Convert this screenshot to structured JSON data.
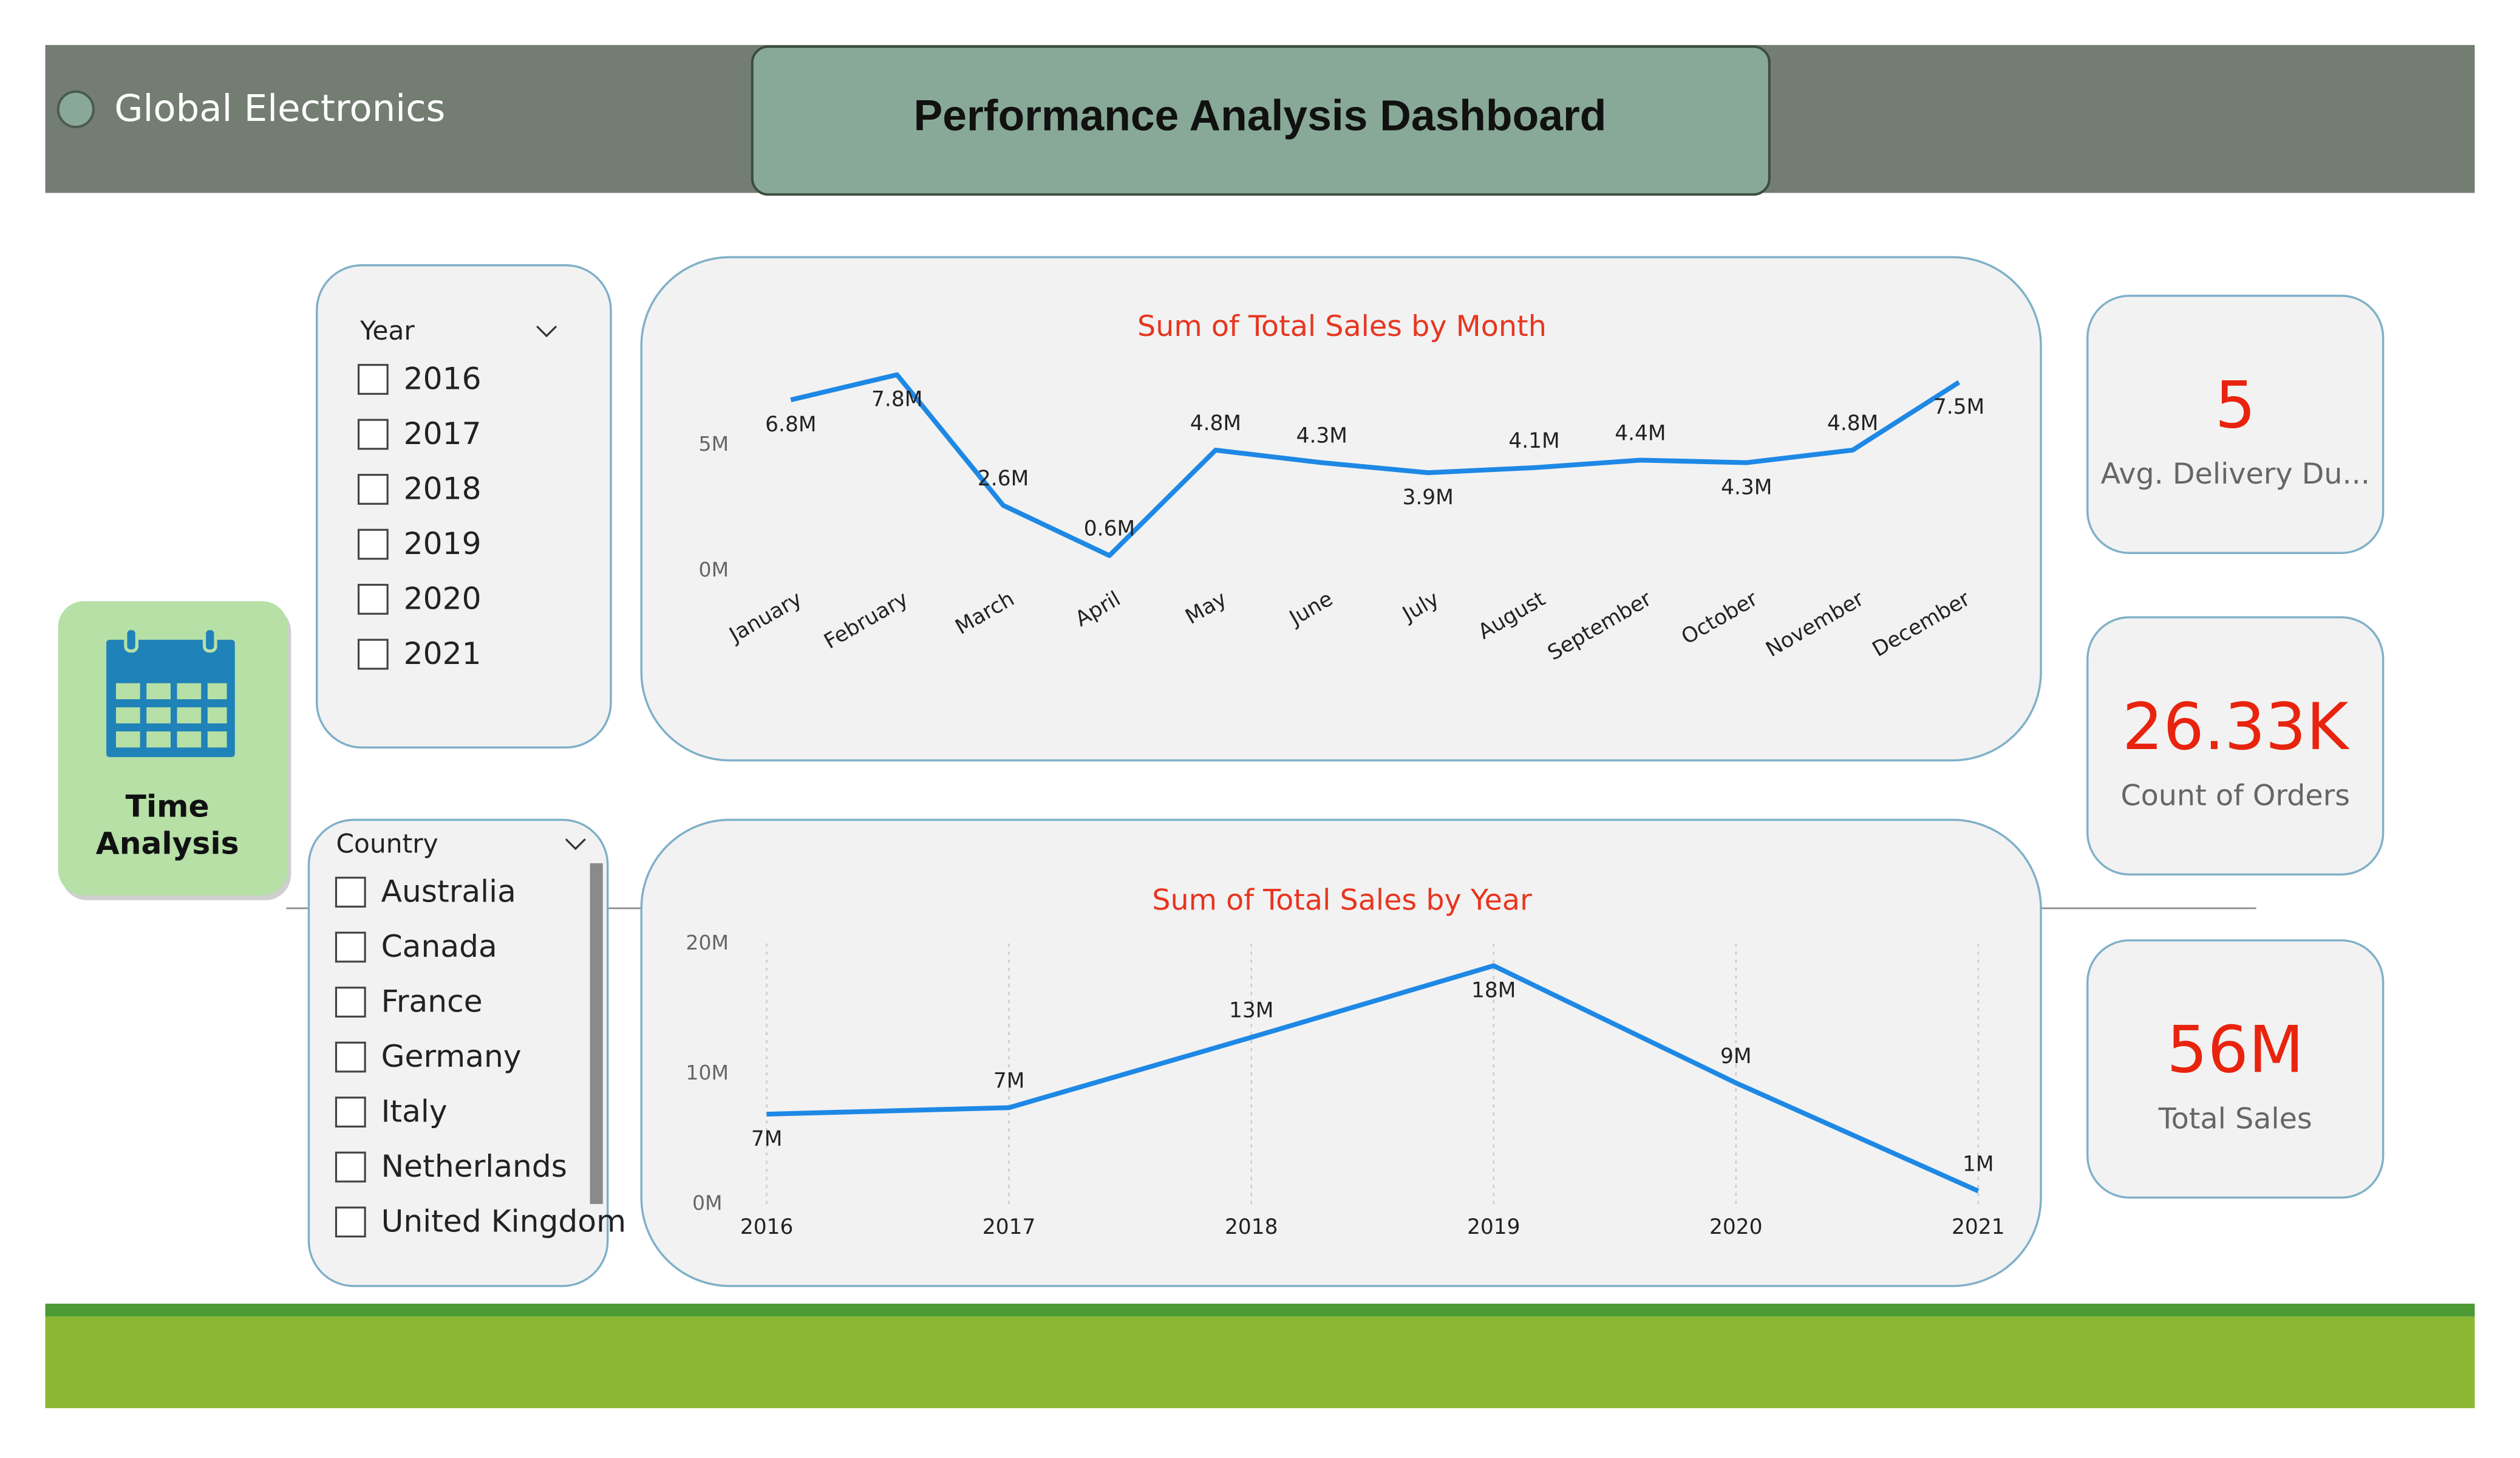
{
  "header": {
    "brand": "Global Electronics",
    "title": "Performance Analysis Dashboard"
  },
  "nav": {
    "lines": [
      "Time",
      "Analysis"
    ]
  },
  "slicers": [
    {
      "title": "Year",
      "items": [
        "2016",
        "2017",
        "2018",
        "2019",
        "2020",
        "2021"
      ]
    },
    {
      "title": "Country",
      "items": [
        "Australia",
        "Canada",
        "France",
        "Germany",
        "Italy",
        "Netherlands",
        "United Kingdom"
      ]
    }
  ],
  "chart_data": [
    {
      "type": "line",
      "title": "Sum of Total Sales by Month",
      "categories": [
        "January",
        "February",
        "March",
        "April",
        "May",
        "June",
        "July",
        "August",
        "September",
        "October",
        "November",
        "December"
      ],
      "values": [
        6800000,
        7800000,
        2600000,
        600000,
        4800000,
        4300000,
        3900000,
        4100000,
        4400000,
        4300000,
        4800000,
        7500000
      ],
      "value_labels": [
        "6.8M",
        "7.8M",
        "2.6M",
        "0.6M",
        "4.8M",
        "4.3M",
        "3.9M",
        "4.1M",
        "4.4M",
        "4.3M",
        "4.8M",
        "7.5M"
      ],
      "color": "#1e88e5",
      "ylim": [
        0,
        8000000
      ],
      "yticks": [
        {
          "value": 0,
          "label": "0M"
        },
        {
          "value": 5000000,
          "label": "5M"
        }
      ],
      "grid": false
    },
    {
      "type": "line",
      "title": "Sum of Total Sales by Year",
      "categories": [
        "2016",
        "2017",
        "2018",
        "2019",
        "2020",
        "2021"
      ],
      "values": [
        6900000,
        7400000,
        12800000,
        18300000,
        9300000,
        1000000
      ],
      "value_labels": [
        "7M",
        "7M",
        "13M",
        "18M",
        "9M",
        "1M"
      ],
      "color": "#1e88e5",
      "ylim": [
        0,
        20000000
      ],
      "yticks": [
        {
          "value": 0,
          "label": "0M"
        },
        {
          "value": 10000000,
          "label": "10M"
        },
        {
          "value": 20000000,
          "label": "20M"
        }
      ],
      "grid": true
    }
  ],
  "kpis": [
    {
      "value": "5",
      "label": "Avg. Delivery Du..."
    },
    {
      "value": "26.33K",
      "label": "Count of Orders"
    },
    {
      "value": "56M",
      "label": "Total Sales"
    }
  ]
}
